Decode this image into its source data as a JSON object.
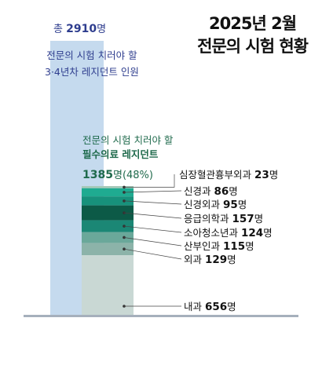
{
  "title": {
    "line1": "2025년 2월",
    "line2": "전문의 시험 현황"
  },
  "total": {
    "prefix": "총",
    "value": "2910",
    "unit": "명",
    "desc_line1": "전문의 시험 치러야 할",
    "desc_line2": "3·4년차 레지던트 인원"
  },
  "must": {
    "desc_line1": "전문의 시험 치러야 할",
    "desc_line2": "필수의료 레지던트",
    "value": "1385",
    "unit": "명",
    "pct": "(48%)"
  },
  "colors": {
    "total_bar": "#c5daee",
    "base_line": "#a6b0bc",
    "segments": [
      "#a6c8b9",
      "#1fab91",
      "#17917b",
      "#0c5a47",
      "#1b8775",
      "#6aa89a",
      "#8cb3a9",
      "#c9d8d4"
    ]
  },
  "chart_data": {
    "type": "bar",
    "total": 2910,
    "subtotal": 1385,
    "subtotal_pct": 48,
    "unit": "명",
    "categories": [
      "심장혈관흉부외과",
      "신경과",
      "신경외과",
      "응급의학과",
      "소아청소년과",
      "산부인과",
      "외과",
      "내과"
    ],
    "values": [
      23,
      86,
      95,
      157,
      124,
      115,
      129,
      656
    ]
  },
  "labels": [
    {
      "name": "심장혈관흉부외과",
      "value": "23",
      "unit": "명"
    },
    {
      "name": "신경과",
      "value": "86",
      "unit": "명"
    },
    {
      "name": "신경외과",
      "value": "95",
      "unit": "명"
    },
    {
      "name": "응급의학과",
      "value": "157",
      "unit": "명"
    },
    {
      "name": "소아청소년과",
      "value": "124",
      "unit": "명"
    },
    {
      "name": "산부인과",
      "value": "115",
      "unit": "명"
    },
    {
      "name": "외과",
      "value": "129",
      "unit": "명"
    },
    {
      "name": "내과",
      "value": "656",
      "unit": "명"
    }
  ]
}
